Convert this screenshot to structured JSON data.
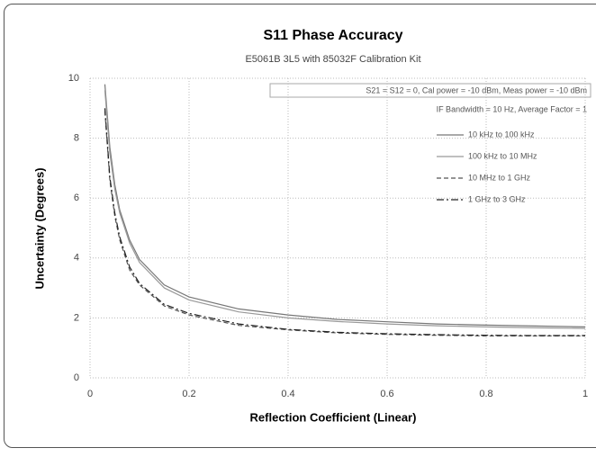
{
  "chart_data": {
    "type": "line",
    "title": "S11 Phase Accuracy",
    "subtitle": "E5061B 3L5 with 85032F Calibration Kit",
    "annotations": [
      "S21 = S12 = 0, Cal power = -10 dBm, Meas power = -10 dBm",
      "IF Bandwidth = 10 Hz, Average Factor = 1"
    ],
    "x_label": "Reflection Coefficient (Linear)",
    "y_label": "Uncertainty (Degrees)",
    "x": [
      0.03,
      0.04,
      0.05,
      0.06,
      0.08,
      0.1,
      0.15,
      0.2,
      0.3,
      0.4,
      0.5,
      0.6,
      0.7,
      0.8,
      0.9,
      1.0
    ],
    "series": [
      {
        "name": "10 kHz to 100 kHz",
        "color": "#777777",
        "dash": "none",
        "values": [
          9.8,
          7.7,
          6.45,
          5.6,
          4.6,
          3.95,
          3.1,
          2.7,
          2.3,
          2.1,
          1.95,
          1.87,
          1.8,
          1.76,
          1.73,
          1.7
        ]
      },
      {
        "name": "100 kHz to 10 MHz",
        "color": "#999999",
        "dash": "none",
        "values": [
          9.6,
          7.5,
          6.3,
          5.5,
          4.5,
          3.85,
          3.0,
          2.6,
          2.2,
          2.0,
          1.88,
          1.8,
          1.74,
          1.7,
          1.67,
          1.65
        ]
      },
      {
        "name": "10 MHz to 1 GHz",
        "color": "#555555",
        "dash": "5,3",
        "values": [
          8.9,
          6.6,
          5.4,
          4.6,
          3.6,
          3.1,
          2.4,
          2.1,
          1.75,
          1.6,
          1.5,
          1.45,
          1.42,
          1.4,
          1.4,
          1.4
        ]
      },
      {
        "name": "1 GHz to 3 GHz",
        "color": "#222222",
        "dash": "8,3,2,3",
        "values": [
          9.0,
          6.7,
          5.5,
          4.7,
          3.7,
          3.15,
          2.45,
          2.15,
          1.8,
          1.62,
          1.52,
          1.47,
          1.44,
          1.42,
          1.41,
          1.41
        ]
      }
    ],
    "xlim": [
      0,
      1
    ],
    "xticks": [
      0,
      0.2,
      0.4,
      0.6,
      0.8,
      1
    ],
    "ylim": [
      0,
      10
    ],
    "yticks": [
      0,
      2,
      4,
      6,
      8,
      10
    ],
    "grid": true
  }
}
